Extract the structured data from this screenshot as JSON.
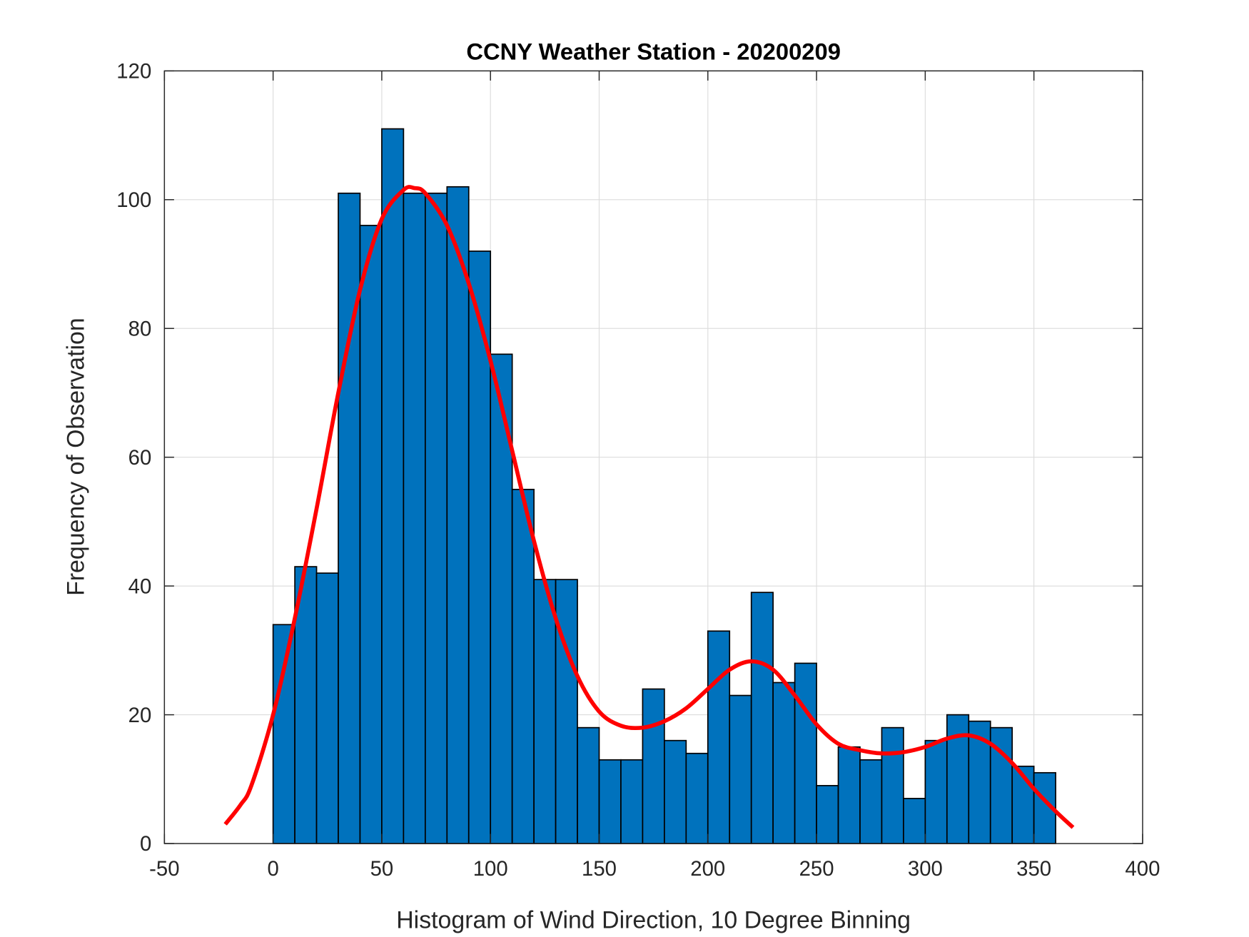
{
  "chart_data": {
    "type": "bar",
    "title": "CCNY Weather Station - 20200209",
    "xlabel": "Histogram of Wind Direction, 10 Degree Binning",
    "ylabel": "Frequency of Observation",
    "xlim": [
      -50,
      400
    ],
    "ylim": [
      0,
      120
    ],
    "xticks": [
      "-50",
      "0",
      "50",
      "100",
      "150",
      "200",
      "250",
      "300",
      "350",
      "400"
    ],
    "yticks": [
      "0",
      "20",
      "40",
      "60",
      "80",
      "100",
      "120"
    ],
    "grid": true,
    "bin_width": 10,
    "bin_starts": [
      0,
      10,
      20,
      30,
      40,
      50,
      60,
      70,
      80,
      90,
      100,
      110,
      120,
      130,
      140,
      150,
      160,
      170,
      180,
      190,
      200,
      210,
      220,
      230,
      240,
      250,
      260,
      270,
      280,
      290,
      300,
      310,
      320,
      330,
      340,
      350
    ],
    "values": [
      34,
      43,
      42,
      101,
      96,
      111,
      101,
      101,
      102,
      92,
      76,
      55,
      41,
      41,
      18,
      13,
      13,
      24,
      16,
      14,
      33,
      23,
      39,
      25,
      28,
      9,
      15,
      13,
      18,
      7,
      16,
      20,
      19,
      18,
      12,
      11
    ],
    "bar_color": "#0072BD",
    "fit_curve": {
      "color": "#FF0000",
      "x": [
        -22,
        -15,
        -10,
        0,
        10,
        20,
        30,
        40,
        50,
        60,
        65,
        70,
        80,
        90,
        100,
        110,
        120,
        130,
        140,
        150,
        160,
        170,
        180,
        190,
        200,
        210,
        220,
        230,
        240,
        250,
        260,
        270,
        280,
        290,
        300,
        310,
        320,
        330,
        340,
        350,
        360,
        368
      ],
      "y": [
        3,
        6,
        9,
        20,
        35,
        52,
        70,
        86,
        97,
        101.5,
        101.8,
        101,
        96,
        87,
        75,
        61,
        47,
        35,
        26,
        20.5,
        18.3,
        18,
        19,
        21,
        24,
        27,
        28.3,
        27,
        23,
        18.5,
        15.5,
        14.5,
        14,
        14.2,
        15,
        16.3,
        16.8,
        15.5,
        12.5,
        8.5,
        5,
        2.5
      ]
    }
  }
}
